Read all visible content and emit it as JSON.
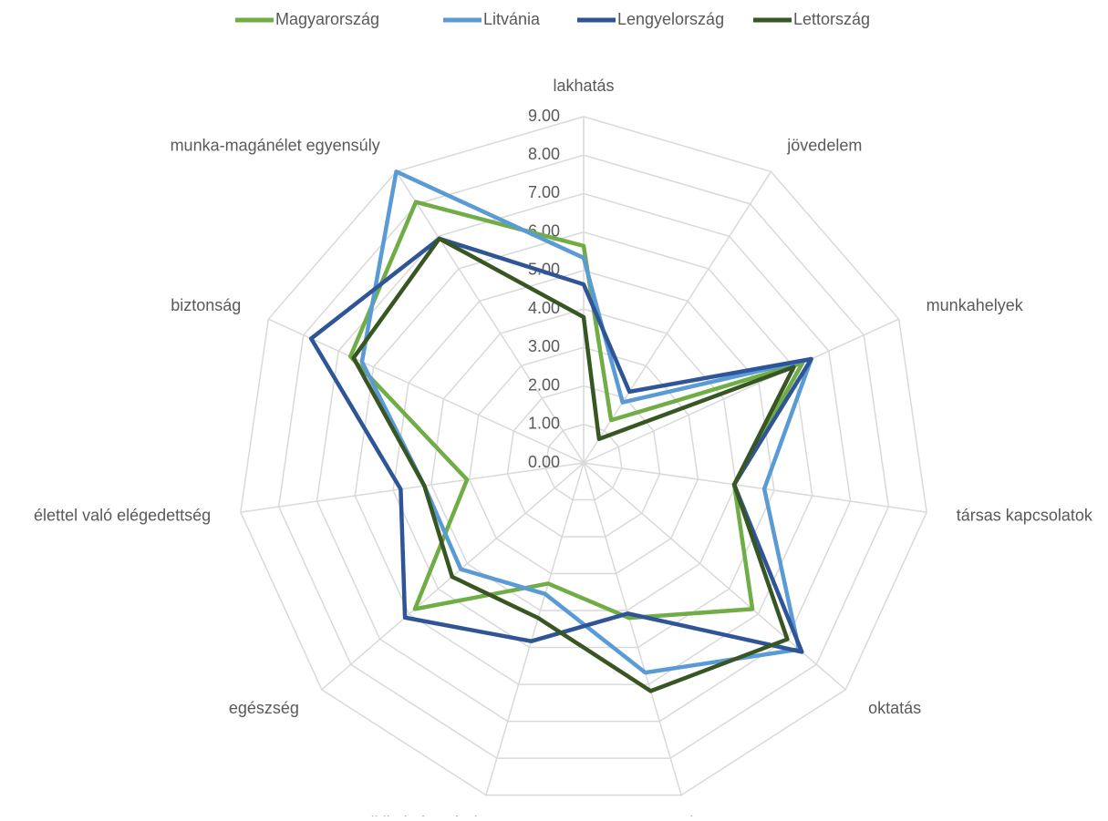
{
  "chart_data": {
    "type": "radar",
    "categories": [
      "lakhatás",
      "jövedelem",
      "munkahelyek",
      "társas kapcsolatok",
      "oktatás",
      "környezet",
      "politikai részvétel",
      "egészség",
      "élettel való elégedettség",
      "biztonság",
      "munka-magánélet egyensúly"
    ],
    "series": [
      {
        "name": "Magyarország",
        "color": "#70ad47",
        "values": [
          5.64,
          1.32,
          6.25,
          3.95,
          5.8,
          4.2,
          3.27,
          5.8,
          3.06,
          6.66,
          8.06
        ]
      },
      {
        "name": "Litvánia",
        "color": "#5b9bd5",
        "values": [
          5.33,
          1.87,
          6.5,
          4.74,
          7.4,
          5.68,
          3.55,
          4.22,
          4.18,
          6.33,
          9.0
        ]
      },
      {
        "name": "Lengyelország",
        "color": "#2f5597",
        "values": [
          4.64,
          2.2,
          6.5,
          3.95,
          7.5,
          4.08,
          4.83,
          6.14,
          4.8,
          7.78,
          6.93
        ]
      },
      {
        "name": "Lettország",
        "color": "#375623",
        "values": [
          3.79,
          0.74,
          6.0,
          3.95,
          7.0,
          6.18,
          4.2,
          4.52,
          4.18,
          6.57,
          6.93
        ]
      }
    ],
    "ylim": [
      0,
      9
    ],
    "yticks": [
      {
        "value": 0,
        "label": "0.00"
      },
      {
        "value": 1,
        "label": "1.00"
      },
      {
        "value": 2,
        "label": "2.00"
      },
      {
        "value": 3,
        "label": "3.00"
      },
      {
        "value": 4,
        "label": "4.00"
      },
      {
        "value": 5,
        "label": "5.00"
      },
      {
        "value": 6,
        "label": "6.00"
      },
      {
        "value": 7,
        "label": "7.00"
      },
      {
        "value": 8,
        "label": "8.00"
      },
      {
        "value": 9,
        "label": "9.00"
      }
    ],
    "grid": true,
    "legend": "top"
  }
}
